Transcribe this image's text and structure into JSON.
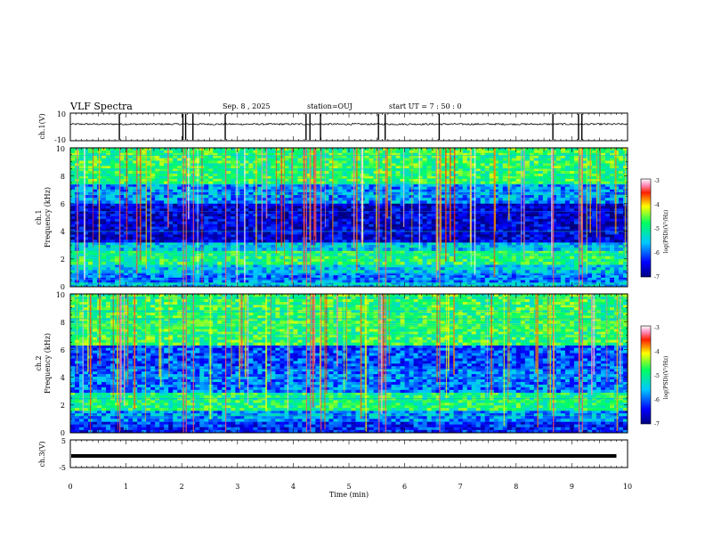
{
  "header": {
    "title": "VLF Spectra",
    "date": "Sep. 8  , 2025",
    "station": "station=OUJ",
    "start": "start  UT  =   7 : 50 : 0"
  },
  "chart_data": [
    {
      "type": "line",
      "panel": "ch1-waveform",
      "ylabel": "ch.1(V)",
      "ylim": [
        -10,
        10
      ],
      "y_ticks": [
        "10",
        "-10"
      ],
      "baseline": 2,
      "xlim": [
        0,
        10
      ],
      "spikes_min": [
        0.88,
        2.02,
        2.07,
        2.2,
        2.78,
        4.23,
        4.3,
        4.49,
        5.53,
        5.65,
        6.62,
        8.66,
        9.12,
        9.18
      ]
    },
    {
      "type": "heatmap",
      "panel": "ch1-spectrogram",
      "ylabel_line1": "ch.1",
      "ylabel_line2": "Frequency (kHz)",
      "ylim": [
        0,
        10
      ],
      "y_ticks": [
        "0",
        "2",
        "4",
        "6",
        "8",
        "10"
      ],
      "xlim": [
        0,
        10
      ],
      "colorbar": {
        "label": "log(PSD)(V²/Hz)",
        "range": [
          -7,
          -3
        ],
        "ticks": [
          "-3",
          "-4",
          "-5",
          "-6",
          "-7"
        ]
      },
      "bands": [
        {
          "f": [
            0,
            0.3
          ],
          "level": -5.5
        },
        {
          "f": [
            0.3,
            1.0
          ],
          "level": -5.9
        },
        {
          "f": [
            1.0,
            1.6
          ],
          "level": -5.5
        },
        {
          "f": [
            1.6,
            2.6
          ],
          "level": -4.9
        },
        {
          "f": [
            2.6,
            3.2
          ],
          "level": -5.6
        },
        {
          "f": [
            3.2,
            6.0
          ],
          "level": -6.6
        },
        {
          "f": [
            6.0,
            7.4
          ],
          "level": -5.8
        },
        {
          "f": [
            7.4,
            10.0
          ],
          "level": -4.8
        }
      ]
    },
    {
      "type": "heatmap",
      "panel": "ch2-spectrogram",
      "ylabel_line1": "ch.2",
      "ylabel_line2": "Frequency (kHz)",
      "ylim": [
        0,
        10
      ],
      "y_ticks": [
        "0",
        "2",
        "4",
        "6",
        "8",
        "10"
      ],
      "xlim": [
        0,
        10
      ],
      "colorbar": {
        "label": "log(PSD)(V²/Hz)",
        "range": [
          -7,
          -3
        ],
        "ticks": [
          "-3",
          "-4",
          "-5",
          "-6",
          "-7"
        ]
      },
      "bands": [
        {
          "f": [
            0,
            0.8
          ],
          "level": -6.3
        },
        {
          "f": [
            0.8,
            1.6
          ],
          "level": -5.8
        },
        {
          "f": [
            1.6,
            2.9
          ],
          "level": -4.9
        },
        {
          "f": [
            2.9,
            4.6
          ],
          "level": -5.9
        },
        {
          "f": [
            4.6,
            6.3
          ],
          "level": -6.1
        },
        {
          "f": [
            6.3,
            10.0
          ],
          "level": -4.8
        }
      ]
    },
    {
      "type": "line",
      "panel": "ch3-waveform",
      "ylabel": "ch.3(V)",
      "ylim": [
        -5,
        5
      ],
      "y_ticks": [
        "5",
        "-5"
      ],
      "baseline": -0.8,
      "xlim": [
        0,
        10
      ]
    }
  ],
  "xaxis": {
    "label": "Time (min)",
    "ticks": [
      "0",
      "1",
      "2",
      "3",
      "4",
      "5",
      "6",
      "7",
      "8",
      "9",
      "10"
    ]
  },
  "colors": {
    "ink": "#000000",
    "background": "#ffffff"
  }
}
